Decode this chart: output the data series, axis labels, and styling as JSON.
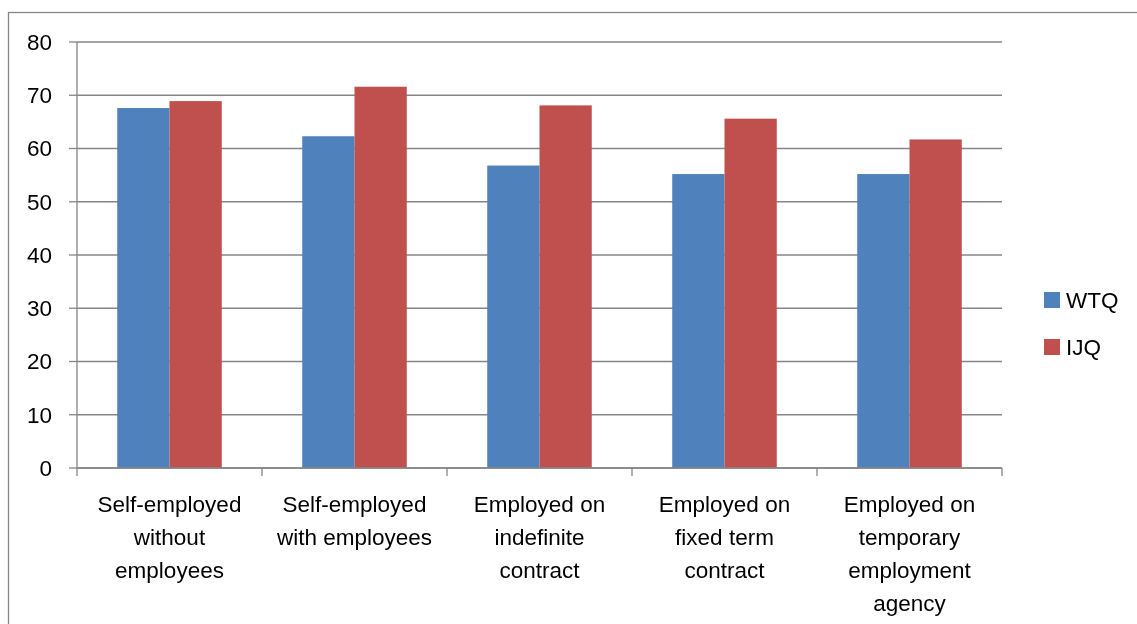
{
  "chart_data": {
    "type": "bar",
    "categories": [
      "Self-employed without employees",
      "Self-employed with employees",
      "Employed on indefinite contract",
      "Employed on fixed term contract",
      "Employed on temporary employment agency"
    ],
    "series": [
      {
        "name": "WTQ",
        "color": "#4f81bd",
        "values": [
          67.6,
          62.3,
          56.8,
          55.2,
          55.2
        ]
      },
      {
        "name": "IJQ",
        "color": "#c0504d",
        "values": [
          68.9,
          71.6,
          68.1,
          65.6,
          61.7
        ]
      }
    ],
    "ylim": [
      0,
      80
    ],
    "yticks": [
      0,
      10,
      20,
      30,
      40,
      50,
      60,
      70,
      80
    ],
    "grid": "y",
    "legend": "right"
  }
}
